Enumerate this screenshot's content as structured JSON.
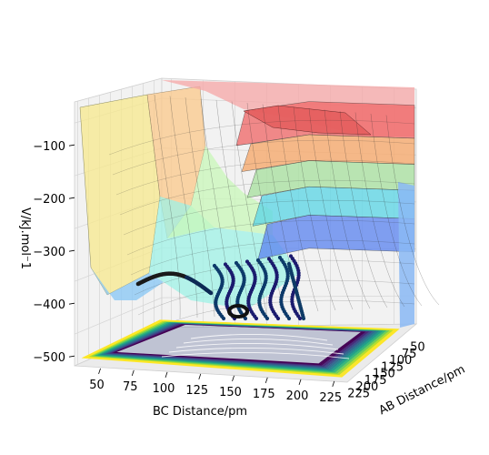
{
  "chart_data": {
    "type": "surface3d",
    "title": "",
    "xlabel": "BC Distance/pm",
    "ylabel": "AB Distance/pm",
    "zlabel": "V/kJ.mol⁻1",
    "x_ticks": [
      "50",
      "75",
      "100",
      "125",
      "150",
      "175",
      "200",
      "225"
    ],
    "y_ticks": [
      "50",
      "75",
      "100",
      "125",
      "150",
      "175",
      "200",
      "225"
    ],
    "z_ticks": [
      "−100",
      "−200",
      "−300",
      "−400",
      "−500"
    ],
    "xlim": [
      40,
      240
    ],
    "ylim": [
      40,
      240
    ],
    "zlim": [
      -560,
      -60
    ],
    "grid": true,
    "surface_colormap": "jet",
    "contour_colormap": "viridis",
    "trajectory_color": "#1b1b5e",
    "surface_bands": [
      {
        "z_top": -90,
        "z_bottom": -160,
        "color": "#f06a6a"
      },
      {
        "z_top": -160,
        "z_bottom": -215,
        "color": "#f6a86a"
      },
      {
        "z_top": -215,
        "z_bottom": -270,
        "color": "#a9e0a0"
      },
      {
        "z_top": -270,
        "z_bottom": -330,
        "color": "#5fd6e6"
      },
      {
        "z_top": -330,
        "z_bottom": -400,
        "color": "#5f86f0"
      }
    ]
  }
}
